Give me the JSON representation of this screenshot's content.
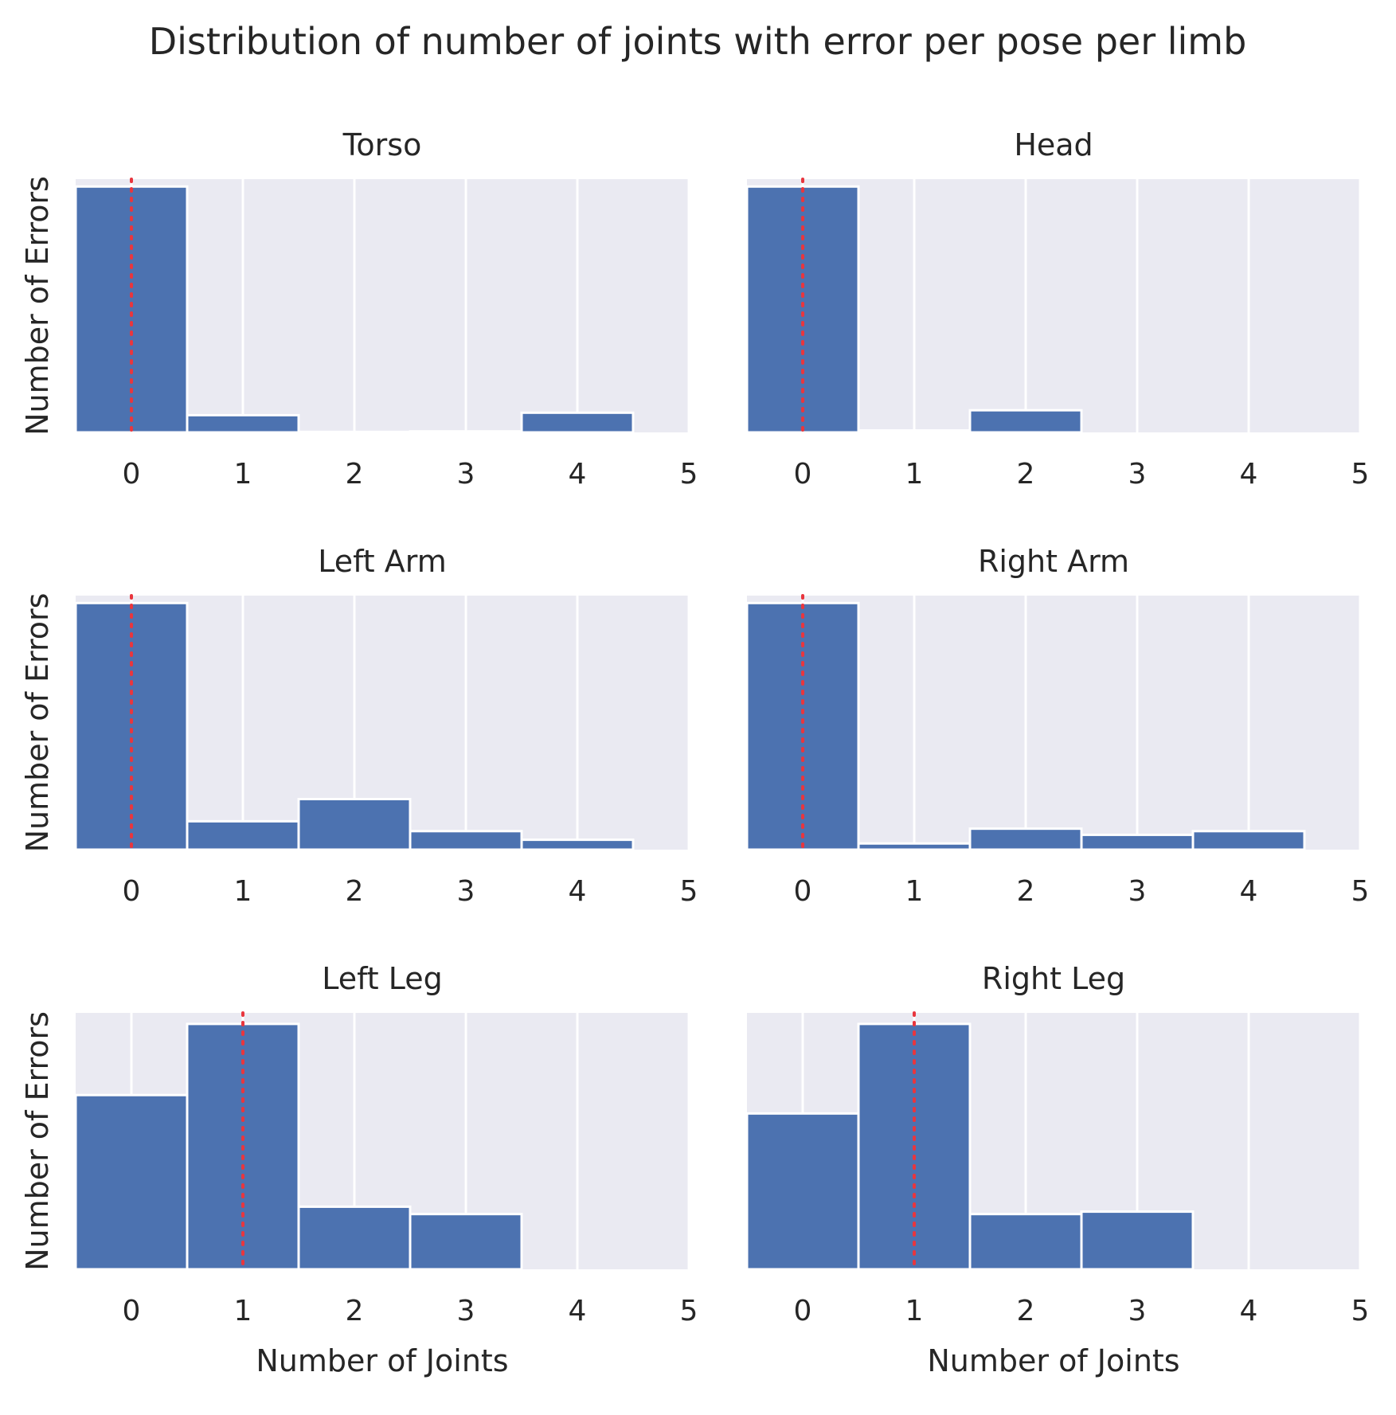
{
  "title": "Distribution of number of joints with error per pose per limb",
  "colors": {
    "background": "#eaeaf2",
    "bar": "#4c72b0",
    "bar_edge": "#ffffff",
    "grid": "#ffffff",
    "median_line": "#e8363e"
  },
  "chart_data": [
    {
      "type": "bar",
      "title": "Torso",
      "xlabel": "",
      "ylabel": "Number of Errors",
      "categories": [
        0,
        1,
        2,
        3,
        4
      ],
      "values": [
        1.0,
        0.07,
        0.002,
        0.004,
        0.08
      ],
      "xlim": [
        -0.5,
        5
      ],
      "xticks": [
        0,
        1,
        2,
        3,
        4,
        5
      ],
      "ylim": [
        0,
        1.03
      ],
      "median": 0,
      "grid": true
    },
    {
      "type": "bar",
      "title": "Head",
      "xlabel": "",
      "ylabel": "",
      "categories": [
        0,
        1,
        2,
        3,
        4
      ],
      "values": [
        1.0,
        0.008,
        0.09,
        0,
        0
      ],
      "xlim": [
        -0.5,
        5
      ],
      "xticks": [
        0,
        1,
        2,
        3,
        4,
        5
      ],
      "ylim": [
        0,
        1.03
      ],
      "median": 0,
      "grid": true
    },
    {
      "type": "bar",
      "title": "Left Arm",
      "xlabel": "",
      "ylabel": "Number of Errors",
      "categories": [
        0,
        1,
        2,
        3,
        4
      ],
      "values": [
        1.0,
        0.115,
        0.205,
        0.075,
        0.04
      ],
      "xlim": [
        -0.5,
        5
      ],
      "xticks": [
        0,
        1,
        2,
        3,
        4,
        5
      ],
      "ylim": [
        0,
        1.03
      ],
      "median": 0,
      "grid": true
    },
    {
      "type": "bar",
      "title": "Right Arm",
      "xlabel": "",
      "ylabel": "",
      "categories": [
        0,
        1,
        2,
        3,
        4
      ],
      "values": [
        1.0,
        0.025,
        0.085,
        0.06,
        0.075
      ],
      "xlim": [
        -0.5,
        5
      ],
      "xticks": [
        0,
        1,
        2,
        3,
        4,
        5
      ],
      "ylim": [
        0,
        1.03
      ],
      "median": 0,
      "grid": true
    },
    {
      "type": "bar",
      "title": "Left Leg",
      "xlabel": "Number of Joints",
      "ylabel": "Number of Errors",
      "categories": [
        0,
        1,
        2,
        3,
        4
      ],
      "values": [
        0.71,
        1.0,
        0.255,
        0.225,
        0
      ],
      "xlim": [
        -0.5,
        5
      ],
      "xticks": [
        0,
        1,
        2,
        3,
        4,
        5
      ],
      "ylim": [
        0,
        1.045
      ],
      "median": 1,
      "grid": true
    },
    {
      "type": "bar",
      "title": "Right Leg",
      "xlabel": "Number of Joints",
      "ylabel": "",
      "categories": [
        0,
        1,
        2,
        3,
        4
      ],
      "values": [
        0.635,
        1.0,
        0.225,
        0.235,
        0
      ],
      "xlim": [
        -0.5,
        5
      ],
      "xticks": [
        0,
        1,
        2,
        3,
        4,
        5
      ],
      "ylim": [
        0,
        1.045
      ],
      "median": 1,
      "grid": true
    }
  ]
}
